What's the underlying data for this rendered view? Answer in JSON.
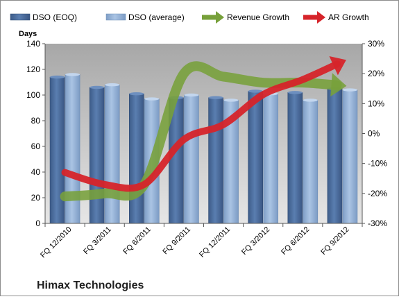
{
  "chart_data": {
    "type": "bar",
    "title": "Himax Technologies",
    "ylabel": "Days",
    "categories": [
      "FQ 12/2010",
      "FQ 3/2011",
      "FQ 6/2011",
      "FQ 9/2011",
      "FQ 12/2011",
      "FQ 3/2012",
      "FQ 6/2012",
      "FQ 9/2012"
    ],
    "series": [
      {
        "name": "DSO (EOQ)",
        "type": "bar",
        "axis": "left",
        "color": "#4f6f9e",
        "values": [
          114,
          106,
          101,
          98,
          98,
          103,
          102,
          105
        ]
      },
      {
        "name": "DSO (average)",
        "type": "bar",
        "axis": "left",
        "color": "#96b4d8",
        "values": [
          116,
          108,
          97,
          100,
          96,
          101,
          96,
          104
        ]
      },
      {
        "name": "Revenue Growth",
        "type": "line",
        "axis": "right",
        "color": "#77a03a",
        "unit": "%",
        "values": [
          -21,
          -20,
          -17,
          20,
          19,
          17,
          17,
          16
        ]
      },
      {
        "name": "AR Growth",
        "type": "line",
        "axis": "right",
        "color": "#d6242a",
        "unit": "%",
        "values": [
          -13,
          -17,
          -17,
          -2,
          3,
          13,
          18,
          24
        ]
      }
    ],
    "ylim": [
      0,
      140
    ],
    "yticks": [
      0,
      20,
      40,
      60,
      80,
      100,
      120,
      140
    ],
    "y2lim": [
      -30,
      30
    ],
    "y2ticks": [
      "-30%",
      "-20%",
      "-10%",
      "0%",
      "10%",
      "20%",
      "30%"
    ],
    "grid": false,
    "legend_position": "top"
  }
}
